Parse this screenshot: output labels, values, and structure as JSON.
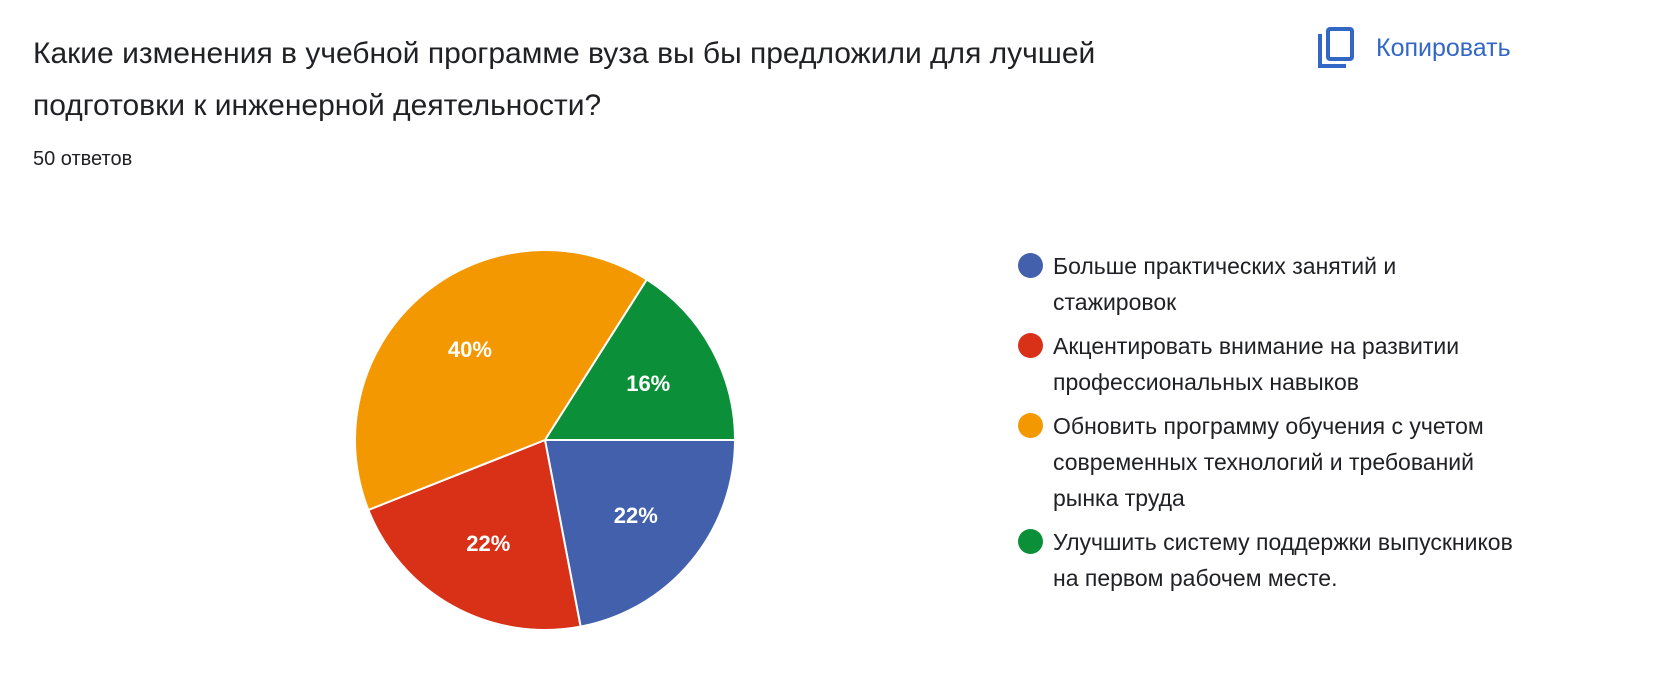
{
  "question": "Какие изменения в учебной программе вуза вы бы предложили для лучшей подготовки к инженерной деятельности?",
  "responses": "50 ответов",
  "copy_button": {
    "label": "Копировать",
    "icon": "copy-icon",
    "color": "#3367c6"
  },
  "chart_data": {
    "type": "pie",
    "legend_position": "right",
    "start": "east, clockwise",
    "slices": [
      {
        "label": "Больше практических занятий и стажировок",
        "value": 22,
        "display": "22%",
        "color": "#4260ab"
      },
      {
        "label": "Акцентировать внимание на развитии профессиональных навыков",
        "value": 22,
        "display": "22%",
        "color": "#d83118"
      },
      {
        "label": "Обновить программу обучения с учетом современных технологий и требований рынка труда",
        "value": 40,
        "display": "40%",
        "color": "#f39800"
      },
      {
        "label": "Улучшить систему поддержки выпускников на первом рабочем месте.",
        "value": 16,
        "display": "16%",
        "color": "#0b9039"
      }
    ]
  }
}
